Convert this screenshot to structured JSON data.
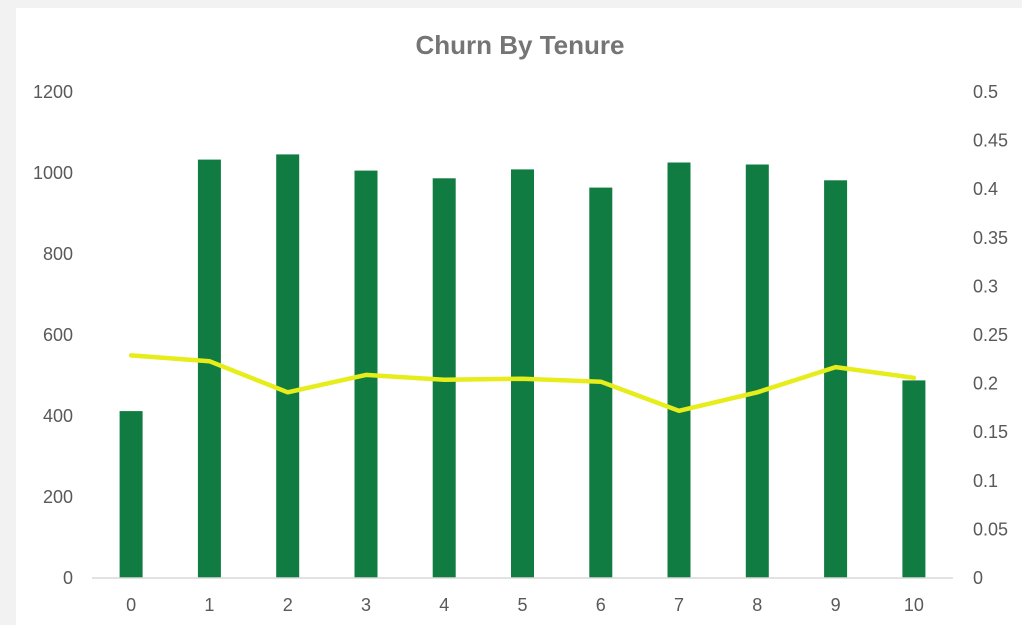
{
  "chart_data": {
    "type": "bar",
    "title": "Churn By Tenure",
    "categories": [
      "0",
      "1",
      "2",
      "3",
      "4",
      "5",
      "6",
      "7",
      "8",
      "9",
      "10"
    ],
    "series": [
      {
        "type": "bar",
        "axis": "left",
        "color": "#107c41",
        "values": [
          412,
          1033,
          1046,
          1006,
          987,
          1009,
          964,
          1026,
          1021,
          982,
          488
        ]
      },
      {
        "type": "line",
        "axis": "right",
        "color": "#e6ed1a",
        "values": [
          0.229,
          0.223,
          0.191,
          0.209,
          0.204,
          0.205,
          0.202,
          0.172,
          0.191,
          0.217,
          0.206
        ]
      }
    ],
    "yleft": {
      "lim": [
        0,
        1200
      ],
      "ticks": [
        "0",
        "200",
        "400",
        "600",
        "800",
        "1000",
        "1200"
      ]
    },
    "yright": {
      "lim": [
        0,
        0.5
      ],
      "ticks": [
        "0",
        "0.05",
        "0.1",
        "0.15",
        "0.2",
        "0.25",
        "0.3",
        "0.35",
        "0.4",
        "0.45",
        "0.5"
      ]
    },
    "grid": false,
    "legend": "none"
  }
}
